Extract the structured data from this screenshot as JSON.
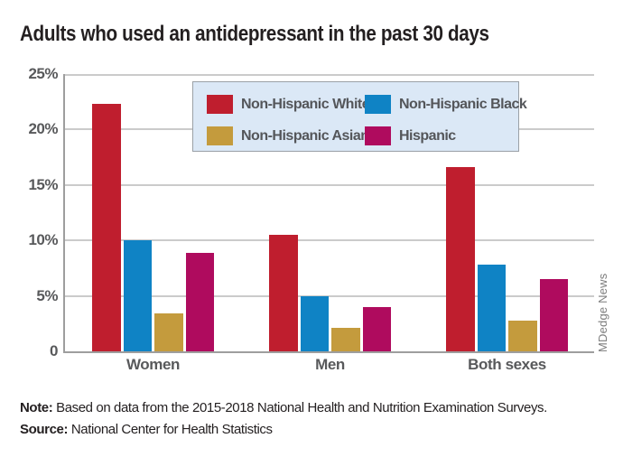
{
  "title": "Adults who used an antidepressant in the past 30 days",
  "watermark": "MDedge News",
  "notes": {
    "note_label": "Note:",
    "note_text": " Based on data from the 2015-2018 National Health and Nutrition Examination Surveys.",
    "source_label": "Source:",
    "source_text": " National Center for Health Statistics"
  },
  "colors": {
    "non_hispanic_white": "#bf1e2e",
    "non_hispanic_black": "#0f83c5",
    "non_hispanic_asian": "#c49b3d",
    "hispanic": "#af0b5e",
    "legend_background": "#dbe8f6",
    "legend_border": "#9aa0a6",
    "gridline": "#cbcbcb",
    "axis_line": "#9e9e9e",
    "axis_text": "#58595b",
    "title_text": "#231f20"
  },
  "chart_data": {
    "type": "bar",
    "title": "Adults who used an antidepressant in the past 30 days",
    "categories": [
      "Women",
      "Men",
      "Both sexes"
    ],
    "series": [
      {
        "name": "Non-Hispanic White",
        "color": "#bf1e2e",
        "values": [
          22.3,
          10.5,
          16.6
        ]
      },
      {
        "name": "Non-Hispanic Black",
        "color": "#0f83c5",
        "values": [
          10.0,
          5.0,
          7.8
        ]
      },
      {
        "name": "Non-Hispanic Asian",
        "color": "#c49b3d",
        "values": [
          3.4,
          2.1,
          2.8
        ]
      },
      {
        "name": "Hispanic",
        "color": "#af0b5e",
        "values": [
          8.9,
          4.0,
          6.5
        ]
      }
    ],
    "xlabel": "",
    "ylabel": "",
    "ylim": [
      0,
      25
    ],
    "yticks": [
      "25%",
      "20%",
      "15%",
      "10%",
      "5%",
      "0"
    ],
    "grid": true,
    "legend_position": "inside-top-center"
  }
}
